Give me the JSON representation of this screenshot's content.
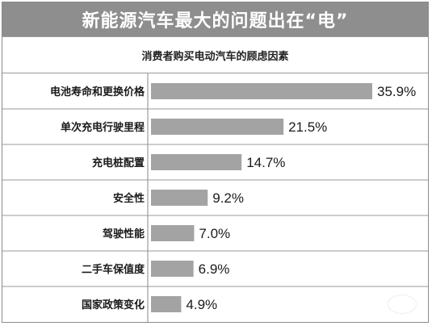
{
  "chart_data": {
    "type": "bar",
    "orientation": "horizontal",
    "title": "新能源汽车最大的问题出在“电”",
    "subtitle": "消费者购买电动汽车的顾虑因素",
    "categories": [
      "电池寿命和更换价格",
      "单次充电行驶里程",
      "充电桩配置",
      "安全性",
      "驾驶性能",
      "二手车保值度",
      "国家政策变化"
    ],
    "values": [
      35.9,
      21.5,
      14.7,
      9.2,
      7.0,
      6.9,
      4.9
    ],
    "value_labels": [
      "35.9%",
      "21.5%",
      "14.7%",
      "9.2%",
      "7.0%",
      "6.9%",
      "4.9%"
    ],
    "unit": "%",
    "xlim": [
      0,
      35.9
    ],
    "bar_color": "#a3a3a3",
    "grid": false,
    "legend": "none"
  }
}
